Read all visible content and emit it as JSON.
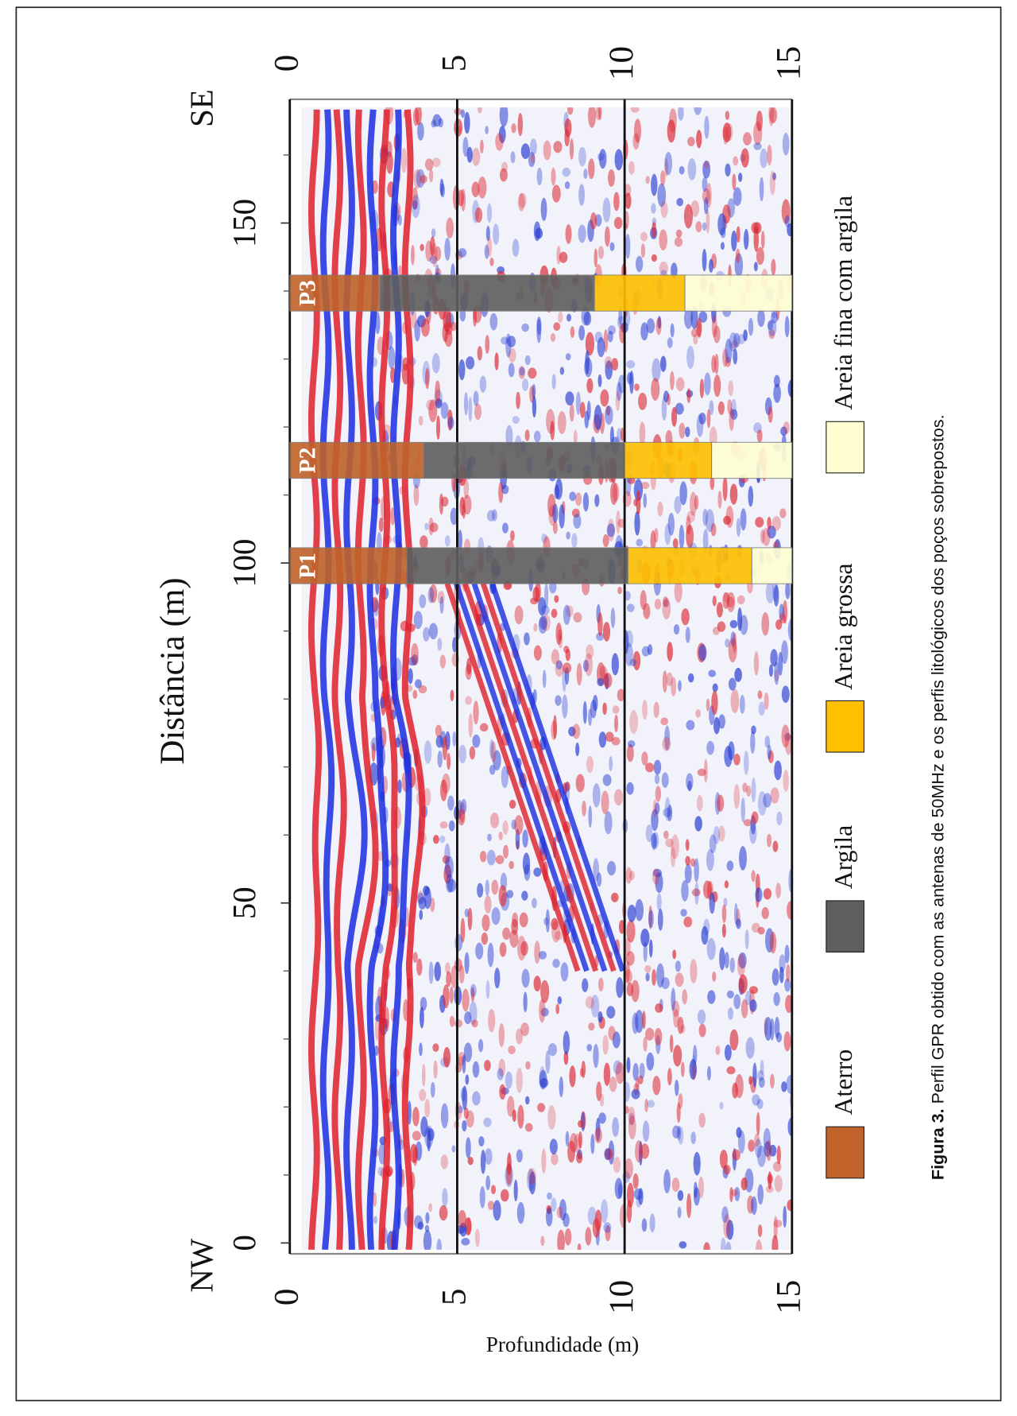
{
  "chart_data": {
    "type": "gpr_profile",
    "xlabel": "Distância (m)",
    "ylabel": "Profundidade (m)",
    "direction_labels": [
      "NW",
      "SE"
    ],
    "xlim": [
      -1.6,
      168.2
    ],
    "xticks": [
      0,
      50,
      100,
      150
    ],
    "xminorticks": [
      10,
      20,
      30,
      40,
      60,
      70,
      80,
      90,
      110,
      120,
      130,
      140,
      160
    ],
    "ylim": [
      0,
      15
    ],
    "yticks": [
      0,
      5,
      10,
      15
    ],
    "grid": true,
    "series": [
      {
        "name": "Aterro",
        "color": "#c0622a"
      },
      {
        "name": "Argila",
        "color": "#5e5e5e"
      },
      {
        "name": "Areia grossa",
        "color": "#ffc000"
      },
      {
        "name": "Areia fina com argila",
        "color": "#ffffd2"
      }
    ],
    "wells": [
      {
        "name": "P1",
        "x": 99.6,
        "thicknesses": [
          3.5,
          6.6,
          3.7,
          1.2
        ]
      },
      {
        "name": "P2",
        "x": 115.1,
        "thicknesses": [
          4.0,
          6.0,
          2.6,
          2.4
        ]
      },
      {
        "name": "P3",
        "x": 139.7,
        "thicknesses": [
          2.7,
          6.4,
          2.7,
          3.2
        ]
      }
    ],
    "caption": {
      "label": "Figura 3.",
      "text": " Perfil GPR obtido com as antenas de 50MHz e os perfis litológicos dos poços sobrepostos."
    }
  }
}
